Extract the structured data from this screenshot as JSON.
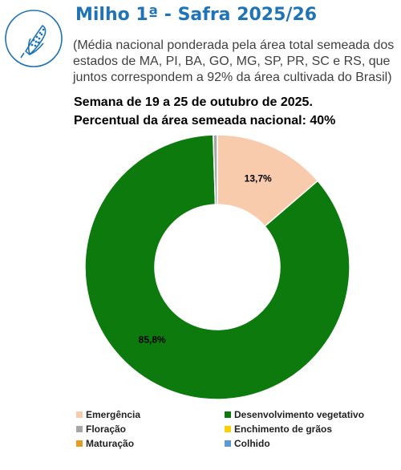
{
  "header": {
    "title": "Milho 1ª - Safra 2025/26",
    "subtitle": "(Média nacional ponderada pela área total semeada dos estados de MA, PI, BA, GO, MG, SP, PR, SC e RS, que juntos correspondem a 92% da área cultivada do Brasil)",
    "week": "Semana de 19 a 25 de outubro de 2025.",
    "percent_label": "Percentual da área semeada nacional: 40%"
  },
  "logo": {
    "icon": "corn-icon",
    "color": "#1f73b7"
  },
  "chart_data": {
    "type": "pie",
    "donut": true,
    "categories": [
      "Emergência",
      "Desenvolvimento vegetativo",
      "Floração",
      "Enchimento de grãos",
      "Maturação",
      "Colhido"
    ],
    "values": [
      13.7,
      85.8,
      0.5,
      0,
      0,
      0
    ],
    "data_labels": [
      "13,7%",
      "85,8%",
      "",
      "",
      "",
      ""
    ],
    "colors": [
      "#f8cbad",
      "#0c7a0c",
      "#a6a6a6",
      "#ffd000",
      "#e69a1f",
      "#5b9bd5"
    ],
    "legend_position": "bottom"
  }
}
